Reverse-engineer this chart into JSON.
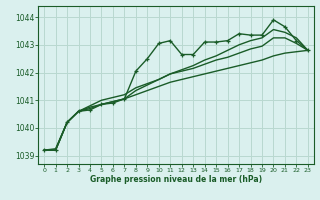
{
  "title": "Graphe pression niveau de la mer (hPa)",
  "bg_color": "#daf0ee",
  "grid_color": "#b8d8d0",
  "line_color": "#1a5c28",
  "xlim": [
    -0.5,
    23.5
  ],
  "ylim": [
    1038.7,
    1044.4
  ],
  "yticks": [
    1039,
    1040,
    1041,
    1042,
    1043,
    1044
  ],
  "xticks": [
    0,
    1,
    2,
    3,
    4,
    5,
    6,
    7,
    8,
    9,
    10,
    11,
    12,
    13,
    14,
    15,
    16,
    17,
    18,
    19,
    20,
    21,
    22,
    23
  ],
  "series_marked": [
    1039.2,
    1039.2,
    1040.2,
    1040.6,
    1040.65,
    1040.85,
    1040.9,
    1041.05,
    1042.05,
    1042.5,
    1043.05,
    1043.15,
    1042.65,
    1042.65,
    1043.1,
    1043.1,
    1043.15,
    1043.4,
    1043.35,
    1043.35,
    1043.9,
    1043.65,
    1043.15,
    1042.8
  ],
  "series_linear": [
    1039.2,
    1039.25,
    1040.2,
    1040.6,
    1040.75,
    1040.85,
    1040.95,
    1041.05,
    1041.2,
    1041.35,
    1041.5,
    1041.65,
    1041.75,
    1041.85,
    1041.95,
    1042.05,
    1042.15,
    1042.25,
    1042.35,
    1042.45,
    1042.6,
    1042.7,
    1042.75,
    1042.8
  ],
  "series_mid1": [
    1039.2,
    1039.2,
    1040.2,
    1040.6,
    1040.7,
    1040.85,
    1040.95,
    1041.05,
    1041.35,
    1041.55,
    1041.75,
    1041.95,
    1042.05,
    1042.15,
    1042.3,
    1042.45,
    1042.55,
    1042.7,
    1042.85,
    1042.95,
    1043.25,
    1043.25,
    1043.05,
    1042.8
  ],
  "series_mid2": [
    1039.2,
    1039.2,
    1040.2,
    1040.6,
    1040.8,
    1041.0,
    1041.1,
    1041.2,
    1041.45,
    1041.6,
    1041.75,
    1041.95,
    1042.1,
    1042.25,
    1042.45,
    1042.6,
    1042.8,
    1043.0,
    1043.15,
    1043.25,
    1043.55,
    1043.45,
    1043.25,
    1042.8
  ]
}
